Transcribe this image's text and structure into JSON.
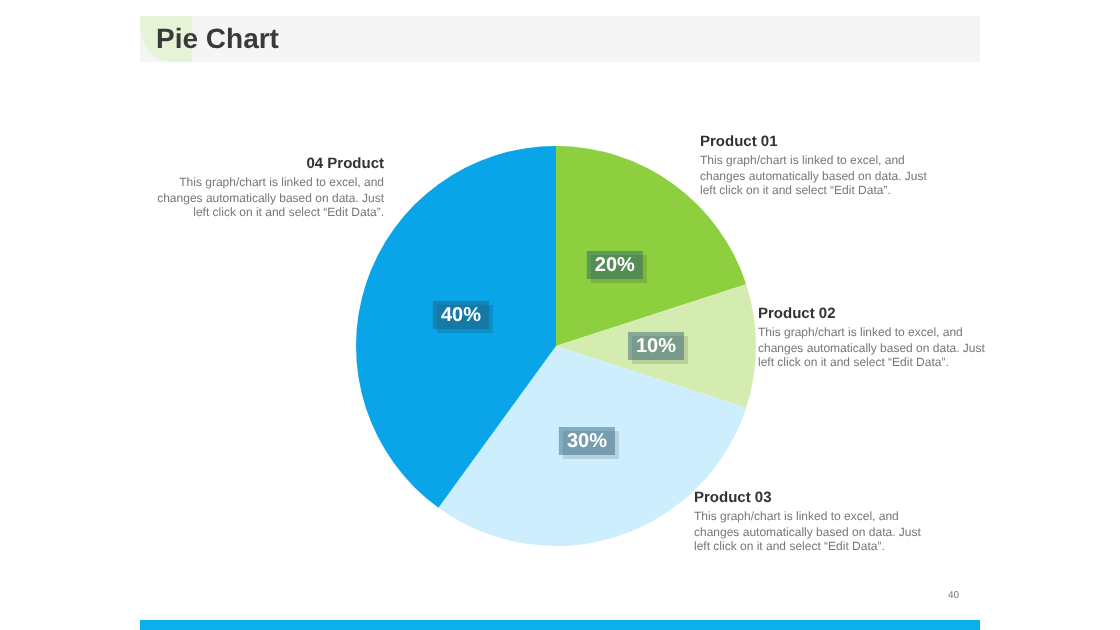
{
  "chart_data": {
    "type": "pie",
    "title": "Pie Chart",
    "categories": [
      "Product 01",
      "Product 02",
      "Product 03",
      "04 Product"
    ],
    "values": [
      20,
      10,
      30,
      40
    ],
    "colors": [
      "#8dcf3f",
      "#d4ecb0",
      "#cdeefc",
      "#0aa4e8"
    ],
    "value_labels": [
      "20%",
      "10%",
      "30%",
      "40%"
    ],
    "legend": false,
    "annotations": [
      "This graph/chart is linked to excel, and changes automatically based on data. Just left click on it and select “Edit Data”.",
      "This graph/chart is linked to excel, and changes automatically based on data. Just left click on it and select “Edit Data”.",
      "This graph/chart is linked to excel, and changes automatically based on data. Just left click on it and select “Edit Data”.",
      "This graph/chart is linked to excel, and changes automatically based on data. Just left click on it and select “Edit Data”.",
      "40"
    ]
  }
}
